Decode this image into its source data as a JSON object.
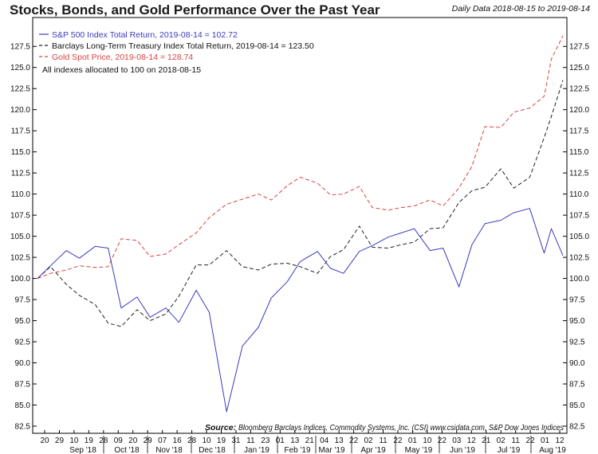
{
  "title": "Stocks, Bonds, and Gold Performance Over the Past Year",
  "date_range": "Daily Data 2018-08-15 to 2019-08-14",
  "note": "All indexes allocated to 100 on 2018-08-15",
  "source": {
    "label": "Source:",
    "text": "Bloomberg Barclays Indices, Commodity Systems, Inc. (CSI) www.csidata.com, S&P Dow Jones Indices"
  },
  "colors": {
    "sp500": "#3b3bbf",
    "treasury": "#222222",
    "gold": "#d8423f"
  },
  "chart_data": {
    "type": "line",
    "title": "Stocks, Bonds, and Gold Performance Over the Past Year",
    "ylim": [
      82.5,
      128.75
    ],
    "y_ticks": [
      "82.5",
      "85.0",
      "87.5",
      "90.0",
      "92.5",
      "95.0",
      "97.5",
      "100.0",
      "102.5",
      "105.0",
      "107.5",
      "110.0",
      "112.5",
      "115.0",
      "117.5",
      "120.0",
      "122.5",
      "125.0",
      "127.5"
    ],
    "x_day_ticks": [
      "20",
      "29",
      "10",
      "19",
      "28",
      "09",
      "20",
      "29",
      "07",
      "16",
      "28",
      "10",
      "19",
      "31",
      "11",
      "23",
      "01",
      "13",
      "21",
      "04",
      "13",
      "22",
      "02",
      "11",
      "22",
      "01",
      "10",
      "22",
      "03",
      "12",
      "21",
      "02",
      "11",
      "22",
      "01",
      "12"
    ],
    "x_month_labels": [
      "Sep '18",
      "Oct '18",
      "Nov '18",
      "Dec '18",
      "Jan '19",
      "Feb '19",
      "Mar '19",
      "Apr '19",
      "May '19",
      "Jun '19",
      "Jul '19",
      "Aug '19"
    ],
    "legend_position": "top-left",
    "x": [
      "2018-08-15",
      "2018-08-24",
      "2018-09-04",
      "2018-09-13",
      "2018-09-24",
      "2018-10-03",
      "2018-10-12",
      "2018-10-23",
      "2018-11-01",
      "2018-11-12",
      "2018-11-21",
      "2018-12-03",
      "2018-12-12",
      "2018-12-24",
      "2019-01-04",
      "2019-01-15",
      "2019-01-24",
      "2019-02-04",
      "2019-02-13",
      "2019-02-25",
      "2019-03-06",
      "2019-03-15",
      "2019-03-26",
      "2019-04-04",
      "2019-04-15",
      "2019-04-24",
      "2019-05-03",
      "2019-05-14",
      "2019-05-23",
      "2019-06-03",
      "2019-06-12",
      "2019-06-21",
      "2019-07-02",
      "2019-07-11",
      "2019-07-22",
      "2019-08-01",
      "2019-08-06",
      "2019-08-14"
    ],
    "series": [
      {
        "name": "S&P 500 Index Total Return, 2019-08-14 = 102.72",
        "values": [
          100.0,
          101.5,
          103.3,
          102.4,
          103.8,
          103.6,
          96.5,
          97.8,
          95.4,
          96.5,
          94.8,
          98.6,
          96.0,
          84.2,
          92.0,
          94.2,
          97.7,
          99.6,
          102.0,
          103.2,
          101.2,
          100.6,
          103.2,
          103.9,
          104.9,
          105.4,
          105.9,
          103.3,
          103.6,
          99.0,
          104.0,
          106.5,
          106.9,
          107.8,
          108.3,
          103.0,
          105.9,
          102.72
        ],
        "style": "solid",
        "color": "#3b3bbf"
      },
      {
        "name": "Barclays Long-Term Treasury Index Total Return, 2019-08-14 = 123.50",
        "values": [
          100.0,
          101.4,
          99.3,
          98.0,
          96.9,
          94.7,
          94.3,
          96.3,
          95.0,
          95.8,
          97.9,
          101.6,
          101.6,
          103.3,
          101.4,
          101.0,
          101.7,
          101.8,
          101.4,
          100.6,
          102.6,
          103.4,
          106.2,
          103.7,
          103.6,
          104.0,
          104.3,
          105.9,
          106.0,
          109.0,
          110.4,
          110.8,
          113.0,
          110.7,
          112.0,
          116.7,
          119.2,
          123.5
        ],
        "style": "dashed",
        "color": "#222222"
      },
      {
        "name": "Gold Spot Price, 2019-08-14 = 128.74",
        "values": [
          100.0,
          100.6,
          101.0,
          101.5,
          101.3,
          101.4,
          104.7,
          104.5,
          102.6,
          102.9,
          104.0,
          105.4,
          107.2,
          108.8,
          109.4,
          110.0,
          109.3,
          111.0,
          112.0,
          111.3,
          109.9,
          110.0,
          110.9,
          108.4,
          108.1,
          108.4,
          108.6,
          109.3,
          108.6,
          110.7,
          113.3,
          118.0,
          117.9,
          119.7,
          120.2,
          121.6,
          126.0,
          128.74
        ],
        "style": "dashed",
        "color": "#d8423f"
      }
    ]
  }
}
